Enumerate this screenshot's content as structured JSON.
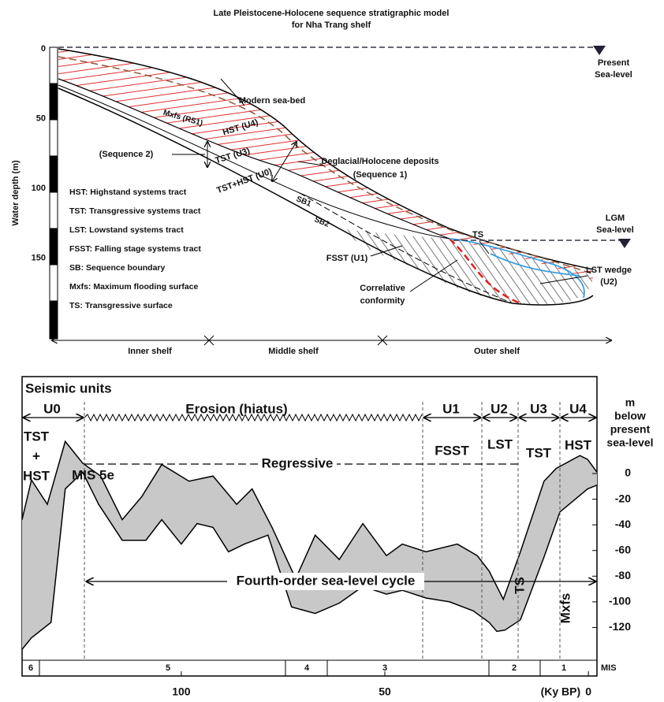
{
  "top": {
    "title": [
      "Late Pleistocene-Holocene sequence stratigraphic model",
      "for Nha Trang shelf"
    ],
    "y_axis_label": "Water depth (m)",
    "depth_ticks": [
      0,
      50,
      100,
      150
    ],
    "present_sea_level": [
      "Present",
      "Sea-level"
    ],
    "lgm_sea_level": [
      "LGM",
      "Sea-level"
    ],
    "modern_sea_bed": "Modern sea-bed",
    "hst": "HST (U4)",
    "mxfs": "Mxfs (RS1)",
    "tst": "TST (U3)",
    "tst_hst": "TST+HST (U0)",
    "sb1": "SB1",
    "sb2": "SB2",
    "ts": "TS",
    "deglacial": [
      "Deglacial/Holocene deposits",
      "(Sequence 1)"
    ],
    "sequence2": "(Sequence 2)",
    "fsst": "FSST (U1)",
    "correlative": [
      "Correlative",
      "conformity"
    ],
    "lst_wedge": [
      "LST wedge",
      "(U2)"
    ],
    "legend": [
      "HST: Highstand systems tract",
      "TST: Transgressive systems tract",
      "LST: Lowstand systems tract",
      "FSST: Falling stage systems tract",
      "SB: Sequence boundary",
      "Mxfs: Maximum flooding surface",
      "TS: Transgressive surface"
    ],
    "zones": [
      "Inner shelf",
      "Middle shelf",
      "Outer shelf"
    ]
  },
  "bottom": {
    "title": "Seismic units",
    "units": [
      "U0",
      "Erosion (hiatus)",
      "U1",
      "U2",
      "U3",
      "U4"
    ],
    "tracts": [
      "TST",
      "+",
      "HST",
      "FSST",
      "LST",
      "TST",
      "HST"
    ],
    "mis_5e": "MIS 5e",
    "regressive": "Regressive",
    "cycle": "Fourth-order sea-level cycle",
    "ts": "TS",
    "mxfs": "Mxfs",
    "y_axis_label": [
      "m",
      "below",
      "present",
      "sea-level"
    ],
    "xlim": [
      139.1,
      -2.1
    ],
    "ylim": [
      -145.5,
      75.5
    ],
    "xticks": [
      100,
      50,
      0
    ],
    "x_unit": "(Ky BP)",
    "yticks": [
      0,
      -20,
      -40,
      -60,
      -80,
      -100,
      -120
    ],
    "mis": [
      "6",
      "5",
      "4",
      "3",
      "2",
      "1"
    ],
    "mis_label": "MIS",
    "upper": {
      "x": [
        139.1,
        136.8,
        132.9,
        128.5,
        124.2,
        119.8,
        114.5,
        109.7,
        104.8,
        98.1,
        92.2,
        86.4,
        82.6,
        77.7,
        71.9,
        67.1,
        61.2,
        55.4,
        49.6,
        45.7,
        39.9,
        32.2,
        27.3,
        24.4,
        20.9,
        16.7,
        10.9,
        7.9,
        2.1,
        0.2,
        -2.1
      ],
      "y": [
        -36,
        -5,
        -24,
        25,
        8,
        -2,
        -36,
        -18,
        7,
        -6,
        -2,
        -24,
        -12,
        -42,
        -82,
        -48,
        -67,
        -39,
        -64,
        -55,
        -61,
        -55,
        -64,
        -76,
        -98,
        -61,
        -6,
        4,
        14,
        11,
        1
      ]
    },
    "lower": {
      "x": [
        139.1,
        136.8,
        132.0,
        128.5,
        124.2,
        120.3,
        114.5,
        108.7,
        104.8,
        100,
        96.1,
        92.2,
        88.4,
        84.5,
        78.7,
        72.9,
        67.1,
        61.2,
        55.4,
        49.6,
        45.7,
        39.9,
        34.1,
        28.3,
        24.4,
        22.5,
        20.5,
        16.7,
        10.9,
        7.0,
        0.2,
        -2.1
      ],
      "y": [
        -137,
        -128,
        -116,
        -12,
        1,
        -24,
        -52,
        -52,
        -36,
        -55,
        -39,
        -42,
        -61,
        -55,
        -48,
        -104,
        -109,
        -101,
        -88,
        -94,
        -91,
        -97,
        -100,
        -107,
        -116,
        -123,
        -122,
        -114,
        -65,
        -30,
        -12,
        -9
      ]
    }
  }
}
